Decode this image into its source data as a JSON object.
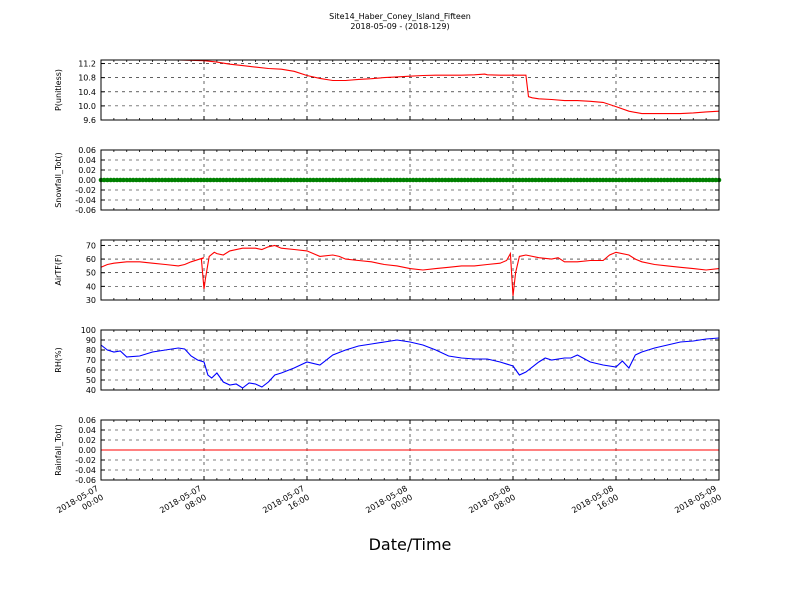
{
  "chart_data": {
    "type": "line",
    "title": "Site14_Haber_Coney_Island_Fifteen",
    "subtitle": "2018-05-09 - (2018-129)",
    "xlabel": "Date/Time",
    "x_ticks": [
      {
        "h": 0,
        "line1": "2018-05-07",
        "line2": "00:00"
      },
      {
        "h": 8,
        "line1": "2018-05-07",
        "line2": "08:00"
      },
      {
        "h": 16,
        "line1": "2018-05-07",
        "line2": "16:00"
      },
      {
        "h": 24,
        "line1": "2018-05-08",
        "line2": "00:00"
      },
      {
        "h": 32,
        "line1": "2018-05-08",
        "line2": "08:00"
      },
      {
        "h": 40,
        "line1": "2018-05-08",
        "line2": "16:00"
      },
      {
        "h": 48,
        "line1": "2018-05-09",
        "line2": "00:00"
      }
    ],
    "xlim_hours": [
      0,
      48
    ],
    "grid": true,
    "panels": [
      {
        "ylabel": "P(unitless)",
        "ylim": [
          9.6,
          11.3
        ],
        "yticks": [
          9.6,
          10.0,
          10.4,
          10.8,
          11.2
        ],
        "tick_decimals": 1,
        "color": "#ff0000",
        "series_x": [
          0,
          3,
          6,
          8,
          9,
          10,
          11,
          12,
          13,
          14,
          15,
          16,
          17,
          18,
          19,
          20,
          21,
          22,
          23,
          24,
          25,
          26,
          27,
          28,
          29,
          29.8,
          30,
          31,
          32,
          33,
          33.2,
          33.5,
          34,
          35,
          36,
          37,
          38,
          39,
          40,
          41,
          42,
          43,
          44,
          45,
          46,
          47,
          48
        ],
        "series_y": [
          11.3,
          11.3,
          11.3,
          11.28,
          11.24,
          11.18,
          11.14,
          11.1,
          11.06,
          11.04,
          10.98,
          10.86,
          10.78,
          10.72,
          10.72,
          10.75,
          10.77,
          10.8,
          10.82,
          10.84,
          10.86,
          10.87,
          10.87,
          10.87,
          10.88,
          10.9,
          10.88,
          10.87,
          10.87,
          10.87,
          10.26,
          10.23,
          10.2,
          10.18,
          10.15,
          10.15,
          10.13,
          10.1,
          9.98,
          9.85,
          9.78,
          9.78,
          9.78,
          9.78,
          9.8,
          9.83,
          9.85
        ]
      },
      {
        "ylabel": "Snowfall_Tot()",
        "ylim": [
          -0.06,
          0.06
        ],
        "yticks": [
          -0.06,
          -0.04,
          -0.02,
          0.0,
          0.02,
          0.04,
          0.06
        ],
        "tick_decimals": 2,
        "color": "#008000",
        "constant": 0.0,
        "marker_every_hours": 0.25
      },
      {
        "ylabel": "AirTF(F)",
        "ylim": [
          30,
          74
        ],
        "yticks": [
          30,
          40,
          50,
          60,
          70
        ],
        "tick_decimals": 0,
        "color": "#ff0000",
        "series_x": [
          0,
          0.5,
          1,
          2,
          3,
          4,
          5,
          6,
          6.5,
          7,
          8,
          7.8,
          8,
          8.1,
          8.4,
          8.8,
          9,
          9.5,
          10,
          11,
          12,
          12.5,
          13,
          13.5,
          14,
          15,
          16,
          16.5,
          17,
          18,
          18.5,
          19,
          20,
          21,
          22,
          23,
          24,
          25,
          26,
          27,
          28,
          29,
          30,
          31,
          31.5,
          31.8,
          32,
          32.2,
          32.5,
          33,
          34,
          35,
          35.5,
          36,
          37,
          38,
          39,
          39.5,
          40,
          41,
          41.5,
          42,
          43,
          44,
          45,
          46,
          47,
          48
        ],
        "series_y": [
          54,
          56,
          57,
          58,
          58,
          57,
          56,
          55,
          56,
          58,
          61,
          60,
          38,
          45,
          62,
          65,
          64,
          63,
          66,
          68,
          68,
          67,
          69,
          70,
          68,
          67,
          66,
          64,
          62,
          63,
          62,
          60,
          59,
          58,
          56,
          55,
          53,
          52,
          53,
          54,
          55,
          55,
          56,
          57,
          59,
          64,
          33,
          50,
          62,
          63,
          61,
          60,
          61,
          58,
          58,
          59,
          59,
          63,
          65,
          63,
          60,
          58,
          56,
          55,
          54,
          53,
          52,
          53
        ]
      },
      {
        "ylabel": "RH(%)",
        "ylim": [
          40,
          100
        ],
        "yticks": [
          40,
          50,
          60,
          70,
          80,
          90,
          100
        ],
        "tick_decimals": 0,
        "color": "#0000ff",
        "series_x": [
          0,
          0.5,
          1,
          1.5,
          2,
          3,
          4,
          5,
          6,
          6.5,
          7,
          7.5,
          8,
          8.3,
          8.6,
          9,
          9.5,
          10,
          10.5,
          11,
          11.5,
          12,
          12.5,
          13,
          13.5,
          14,
          15,
          16,
          17,
          18,
          19,
          20,
          21,
          22,
          23,
          24,
          25,
          26,
          27,
          28,
          29,
          30,
          31,
          32,
          32.5,
          33,
          34,
          34.5,
          35,
          36,
          36.5,
          37,
          38,
          39,
          40,
          40.5,
          41,
          41.5,
          42,
          43,
          44,
          45,
          46,
          47,
          48
        ],
        "series_y": [
          85,
          80,
          78,
          79,
          73,
          74,
          78,
          80,
          82,
          81,
          74,
          70,
          68,
          55,
          52,
          57,
          48,
          45,
          46,
          42,
          47,
          46,
          43,
          48,
          55,
          57,
          62,
          68,
          65,
          75,
          80,
          84,
          86,
          88,
          90,
          88,
          85,
          80,
          74,
          72,
          71,
          71,
          68,
          64,
          55,
          58,
          68,
          72,
          70,
          72,
          72,
          75,
          68,
          65,
          63,
          69,
          62,
          75,
          78,
          82,
          85,
          88,
          89,
          91,
          92
        ]
      },
      {
        "ylabel": "Rainfall_Tot()",
        "ylim": [
          -0.06,
          0.06
        ],
        "yticks": [
          -0.06,
          -0.04,
          -0.02,
          0.0,
          0.02,
          0.04,
          0.06
        ],
        "tick_decimals": 2,
        "color": "#ff0000",
        "constant": 0.0
      }
    ]
  }
}
